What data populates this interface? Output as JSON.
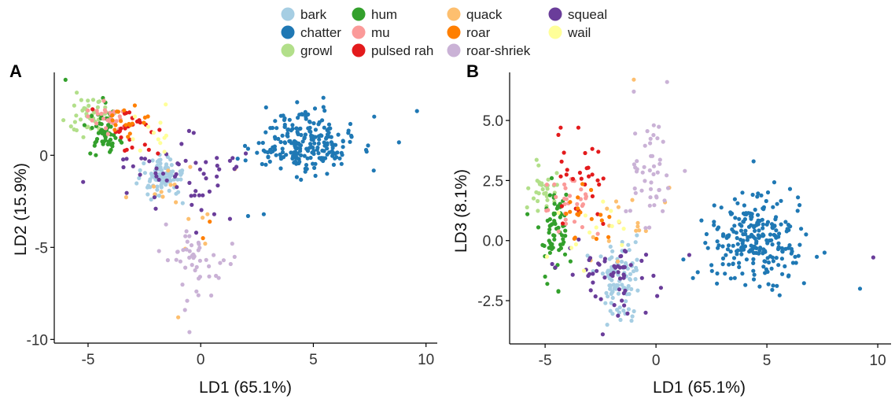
{
  "legend": {
    "items": [
      {
        "label": "bark",
        "color": "#a6cee3"
      },
      {
        "label": "chatter",
        "color": "#1f78b4"
      },
      {
        "label": "growl",
        "color": "#b2df8a"
      },
      {
        "label": "hum",
        "color": "#33a02c"
      },
      {
        "label": "mu",
        "color": "#fb9a99"
      },
      {
        "label": "pulsed rah",
        "color": "#e31a1c"
      },
      {
        "label": "quack",
        "color": "#fdbf6f"
      },
      {
        "label": "roar",
        "color": "#ff7f00"
      },
      {
        "label": "roar-shriek",
        "color": "#cab2d6"
      },
      {
        "label": "squeal",
        "color": "#6a3d9a"
      },
      {
        "label": "wail",
        "color": "#ffff99"
      }
    ]
  },
  "chart_data": [
    {
      "panel": "A",
      "type": "scatter",
      "xlabel": "LD1 (65.1%)",
      "ylabel": "LD2 (15.9%)",
      "xlim": [
        -6.5,
        10.5
      ],
      "ylim": [
        -10.2,
        4.5
      ],
      "xticks": [
        -5,
        0,
        5,
        10
      ],
      "xtick_labels": [
        "-5",
        "0",
        "5",
        "10"
      ],
      "yticks": [
        -10,
        -5,
        0
      ],
      "ytick_labels": [
        "-10",
        "-5",
        "0"
      ],
      "grid": false,
      "legend_position": "top",
      "series": [
        {
          "name": "bark",
          "color": "#a6cee3",
          "clusters": [
            {
              "cx": -1.8,
              "cy": -1.3,
              "sx": 0.45,
              "sy": 0.55,
              "n": 90
            }
          ],
          "points": [
            [
              -0.8,
              -2.6
            ],
            [
              -2.2,
              -2.4
            ],
            [
              -1.0,
              -2.0
            ]
          ]
        },
        {
          "name": "chatter",
          "color": "#1f78b4",
          "clusters": [
            {
              "cx": 4.5,
              "cy": 0.7,
              "sx": 1.1,
              "sy": 0.8,
              "n": 230
            }
          ],
          "points": [
            [
              9.6,
              2.4
            ],
            [
              8.8,
              0.7
            ],
            [
              7.7,
              2.1
            ],
            [
              2.1,
              -3.3
            ],
            [
              2.8,
              -3.2
            ],
            [
              2.9,
              2.6
            ]
          ]
        },
        {
          "name": "growl",
          "color": "#b2df8a",
          "clusters": [
            {
              "cx": -4.8,
              "cy": 2.2,
              "sx": 0.45,
              "sy": 0.5,
              "n": 45
            }
          ],
          "points": [
            [
              -5.5,
              3.4
            ],
            [
              -5.3,
              3.0
            ]
          ]
        },
        {
          "name": "hum",
          "color": "#33a02c",
          "clusters": [
            {
              "cx": -4.3,
              "cy": 1.2,
              "sx": 0.35,
              "sy": 0.65,
              "n": 60
            }
          ],
          "points": [
            [
              -6.0,
              4.1
            ],
            [
              -4.9,
              0.1
            ]
          ]
        },
        {
          "name": "mu",
          "color": "#fb9a99",
          "clusters": [
            {
              "cx": -4.0,
              "cy": 2.0,
              "sx": 0.5,
              "sy": 0.45,
              "n": 30
            }
          ],
          "points": []
        },
        {
          "name": "pulsed rah",
          "color": "#e31a1c",
          "clusters": [
            {
              "cx": -3.1,
              "cy": 1.3,
              "sx": 0.55,
              "sy": 0.7,
              "n": 25
            }
          ],
          "points": [
            [
              -2.3,
              0.3
            ],
            [
              -1.9,
              0.1
            ]
          ]
        },
        {
          "name": "quack",
          "color": "#fdbf6f",
          "clusters": [
            {
              "cx": -1.0,
              "cy": -2.3,
              "sx": 1.1,
              "sy": 1.5,
              "n": 14
            }
          ],
          "points": [
            [
              -1.0,
              -8.8
            ],
            [
              0.2,
              -4.8
            ],
            [
              0.3,
              -3.2
            ]
          ]
        },
        {
          "name": "roar",
          "color": "#ff7f00",
          "clusters": [
            {
              "cx": -3.2,
              "cy": 1.8,
              "sx": 0.6,
              "sy": 0.5,
              "n": 18
            }
          ],
          "points": [
            [
              0.4,
              -3.6
            ],
            [
              0.1,
              -4.5
            ]
          ]
        },
        {
          "name": "roar-shriek",
          "color": "#cab2d6",
          "clusters": [
            {
              "cx": -0.2,
              "cy": -5.8,
              "sx": 0.6,
              "sy": 1.0,
              "n": 45
            }
          ],
          "points": [
            [
              -0.5,
              -9.6
            ],
            [
              -0.7,
              -8.4
            ],
            [
              -0.1,
              -7.6
            ],
            [
              -0.6,
              -7.9
            ],
            [
              1.4,
              -4.8
            ]
          ]
        },
        {
          "name": "squeal",
          "color": "#6a3d9a",
          "clusters": [
            {
              "cx": -1.0,
              "cy": -1.0,
              "sx": 1.4,
              "sy": 1.0,
              "n": 50
            }
          ],
          "points": [
            [
              2.0,
              0.1
            ],
            [
              1.3,
              -0.3
            ],
            [
              -3.0,
              -0.6
            ],
            [
              0.6,
              -3.2
            ],
            [
              -0.2,
              -4.2
            ]
          ]
        },
        {
          "name": "wail",
          "color": "#ffff99",
          "clusters": [
            {
              "cx": -2.2,
              "cy": 1.2,
              "sx": 0.9,
              "sy": 0.8,
              "n": 12
            }
          ],
          "points": []
        }
      ]
    },
    {
      "panel": "B",
      "type": "scatter",
      "xlabel": "LD1 (65.1%)",
      "ylabel": "LD3 (8.1%)",
      "xlim": [
        -6.6,
        10.6
      ],
      "ylim": [
        -4.3,
        7.0
      ],
      "xticks": [
        -5,
        0,
        5,
        10
      ],
      "xtick_labels": [
        "-5",
        "0",
        "5",
        "10"
      ],
      "yticks": [
        -2.5,
        0,
        2.5,
        5
      ],
      "ytick_labels": [
        "-2.5",
        "0.0",
        "2.5",
        "5.0"
      ],
      "grid": false,
      "legend_position": "top",
      "series": [
        {
          "name": "bark",
          "color": "#a6cee3",
          "clusters": [
            {
              "cx": -1.7,
              "cy": -1.6,
              "sx": 0.5,
              "sy": 0.75,
              "n": 95
            }
          ],
          "points": [
            [
              -2.2,
              -3.5
            ],
            [
              -1.6,
              -3.3
            ]
          ]
        },
        {
          "name": "chatter",
          "color": "#1f78b4",
          "clusters": [
            {
              "cx": 4.5,
              "cy": 0.0,
              "sx": 1.15,
              "sy": 0.95,
              "n": 240
            }
          ],
          "points": [
            [
              9.2,
              -2.0
            ],
            [
              4.4,
              3.3
            ],
            [
              7.6,
              -0.5
            ],
            [
              6.4,
              1.8
            ]
          ]
        },
        {
          "name": "growl",
          "color": "#b2df8a",
          "clusters": [
            {
              "cx": -5.1,
              "cy": 2.1,
              "sx": 0.3,
              "sy": 0.5,
              "n": 30
            }
          ],
          "points": []
        },
        {
          "name": "hum",
          "color": "#33a02c",
          "clusters": [
            {
              "cx": -4.5,
              "cy": 0.3,
              "sx": 0.3,
              "sy": 0.8,
              "n": 65
            }
          ],
          "points": [
            [
              -5.8,
              1.1
            ],
            [
              -5.0,
              -1.5
            ],
            [
              -4.4,
              -2.1
            ],
            [
              -4.9,
              -1.8
            ]
          ]
        },
        {
          "name": "mu",
          "color": "#fb9a99",
          "clusters": [
            {
              "cx": -4.0,
              "cy": 1.5,
              "sx": 0.5,
              "sy": 0.6,
              "n": 30
            }
          ],
          "points": []
        },
        {
          "name": "pulsed rah",
          "color": "#e31a1c",
          "clusters": [
            {
              "cx": -3.3,
              "cy": 2.5,
              "sx": 0.6,
              "sy": 1.0,
              "n": 25
            }
          ],
          "points": [
            [
              -4.3,
              4.7
            ],
            [
              -3.5,
              4.7
            ],
            [
              -4.4,
              4.4
            ],
            [
              -2.6,
              3.7
            ]
          ]
        },
        {
          "name": "quack",
          "color": "#fdbf6f",
          "clusters": [
            {
              "cx": -1.2,
              "cy": 0.4,
              "sx": 1.1,
              "sy": 1.2,
              "n": 16
            }
          ],
          "points": [
            [
              -1.0,
              6.7
            ],
            [
              0.6,
              2.2
            ]
          ]
        },
        {
          "name": "roar",
          "color": "#ff7f00",
          "clusters": [
            {
              "cx": -3.2,
              "cy": 1.2,
              "sx": 0.6,
              "sy": 0.8,
              "n": 18
            }
          ],
          "points": []
        },
        {
          "name": "roar-shriek",
          "color": "#cab2d6",
          "clusters": [
            {
              "cx": -0.3,
              "cy": 2.6,
              "sx": 0.5,
              "sy": 1.5,
              "n": 45
            }
          ],
          "points": [
            [
              -1.0,
              6.2
            ],
            [
              0.5,
              6.6
            ],
            [
              -0.1,
              4.8
            ],
            [
              1.3,
              2.9
            ]
          ]
        },
        {
          "name": "squeal",
          "color": "#6a3d9a",
          "clusters": [
            {
              "cx": -2.0,
              "cy": -1.4,
              "sx": 0.9,
              "sy": 0.8,
              "n": 55
            }
          ],
          "points": [
            [
              9.8,
              -0.7
            ],
            [
              -2.4,
              -3.9
            ],
            [
              1.5,
              -0.6
            ]
          ]
        },
        {
          "name": "wail",
          "color": "#ffff99",
          "clusters": [
            {
              "cx": -2.6,
              "cy": 0.3,
              "sx": 1.0,
              "sy": 0.9,
              "n": 14
            }
          ],
          "points": []
        }
      ]
    }
  ],
  "panels": [
    {
      "label": "A"
    },
    {
      "label": "B"
    }
  ]
}
